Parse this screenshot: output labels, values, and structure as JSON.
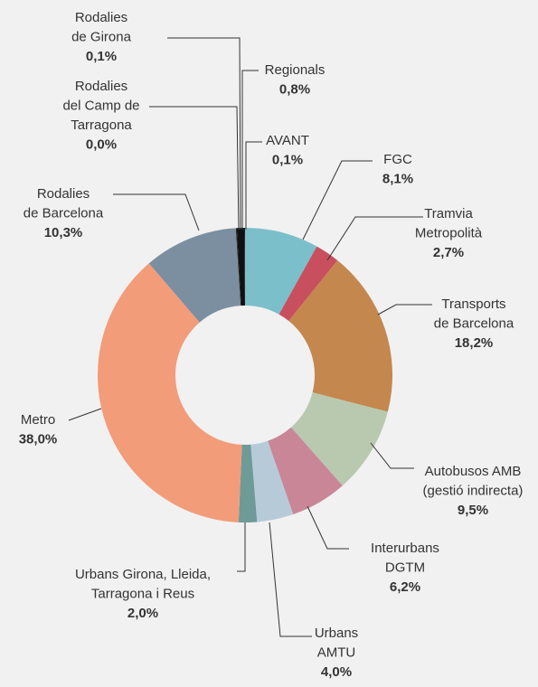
{
  "chart_data": {
    "type": "donut",
    "categories": [
      [
        "FGC"
      ],
      [
        "Tramvia",
        "Metropolità"
      ],
      [
        "Transports",
        "de Barcelona"
      ],
      [
        "Autobusos AMB",
        "(gestió indirecta)"
      ],
      [
        "Interurbans",
        "DGTM"
      ],
      [
        "Urbans",
        "AMTU"
      ],
      [
        "Urbans Girona, Lleida,",
        "Tarragona i Reus"
      ],
      [
        "Metro"
      ],
      [
        "Rodalies",
        "de Barcelona"
      ],
      [
        "Rodalies",
        "del Camp de",
        "Tarragona"
      ],
      [
        "Rodalies",
        "de Girona"
      ],
      [
        "Regionals"
      ],
      [
        "AVANT"
      ]
    ],
    "values": [
      8.1,
      2.7,
      18.2,
      9.5,
      6.2,
      4.0,
      2.0,
      38.0,
      10.3,
      0.0,
      0.1,
      0.8,
      0.1
    ],
    "value_labels": [
      "8,1%",
      "2,7%",
      "18,2%",
      "9,5%",
      "6,2%",
      "4,0%",
      "2,0%",
      "38,0%",
      "10,3%",
      "0,0%",
      "0,1%",
      "0,8%",
      "0,1%"
    ],
    "colors": [
      "#7bbfca",
      "#c8505e",
      "#c4874e",
      "#b9c9b0",
      "#c98696",
      "#b7cad8",
      "#6e9a98",
      "#f29c7a",
      "#7b8fa0",
      "#222222",
      "#222222",
      "#111111",
      "#222222"
    ]
  }
}
